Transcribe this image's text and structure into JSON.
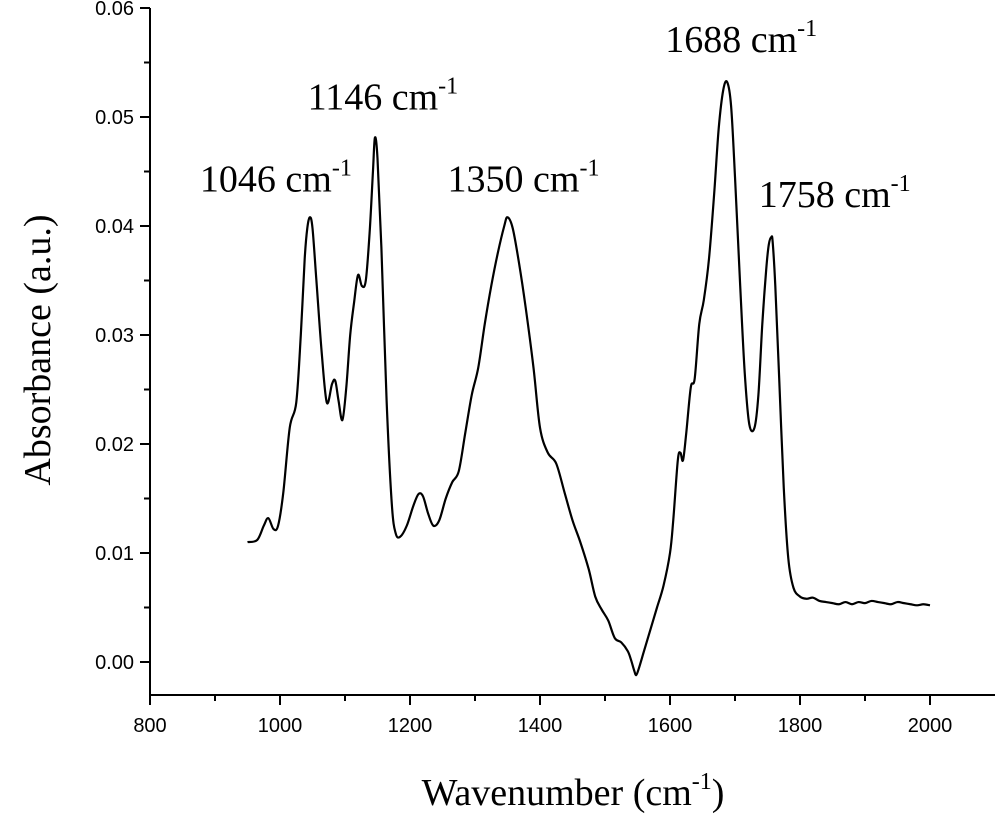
{
  "chart_data": {
    "type": "line",
    "title": "",
    "xlabel": "Wavenumber (cm",
    "xlabel_sup": "-1",
    "xlabel_suffix": ")",
    "ylabel": "Absorbance (a.u.)",
    "xlim": [
      800,
      2000
    ],
    "ylim": [
      -0.003,
      0.06
    ],
    "x_ticks": [
      800,
      1000,
      1200,
      1400,
      1600,
      1800,
      2000
    ],
    "x_tick_labels": [
      "800",
      "1000",
      "1200",
      "1400",
      "1600",
      "1800",
      "2000"
    ],
    "y_ticks": [
      0.0,
      0.01,
      0.02,
      0.03,
      0.04,
      0.05,
      0.06
    ],
    "y_tick_labels": [
      "0.00",
      "0.01",
      "0.02",
      "0.03",
      "0.04",
      "0.05",
      "0.06"
    ],
    "grid": false,
    "series": [
      {
        "color": "#000000",
        "x": [
          950,
          965,
          975,
          982,
          990,
          997,
          1005,
          1015,
          1025,
          1032,
          1038,
          1042,
          1046,
          1050,
          1056,
          1064,
          1072,
          1080,
          1085,
          1090,
          1096,
          1102,
          1108,
          1114,
          1120,
          1126,
          1132,
          1138,
          1143,
          1146,
          1150,
          1156,
          1164,
          1172,
          1178,
          1185,
          1195,
          1205,
          1213,
          1220,
          1228,
          1236,
          1245,
          1255,
          1265,
          1275,
          1285,
          1295,
          1305,
          1315,
          1325,
          1335,
          1345,
          1350,
          1358,
          1368,
          1378,
          1390,
          1400,
          1412,
          1425,
          1438,
          1450,
          1462,
          1475,
          1485,
          1495,
          1505,
          1515,
          1525,
          1535,
          1540,
          1545,
          1548,
          1552,
          1560,
          1570,
          1580,
          1590,
          1600,
          1605,
          1612,
          1616,
          1620,
          1625,
          1632,
          1638,
          1645,
          1652,
          1660,
          1668,
          1675,
          1682,
          1688,
          1694,
          1700,
          1708,
          1715,
          1722,
          1730,
          1736,
          1742,
          1748,
          1752,
          1756,
          1758,
          1762,
          1768,
          1775,
          1782,
          1790,
          1800,
          1810,
          1820,
          1830,
          1840,
          1850,
          1860,
          1870,
          1880,
          1890,
          1900,
          1910,
          1920,
          1930,
          1940,
          1950,
          1960,
          1970,
          1980,
          1990,
          2000
        ],
        "y": [
          0.011,
          0.0112,
          0.0125,
          0.0132,
          0.0122,
          0.0125,
          0.0155,
          0.0215,
          0.0238,
          0.03,
          0.037,
          0.0398,
          0.0408,
          0.0398,
          0.035,
          0.0285,
          0.0238,
          0.0255,
          0.0258,
          0.024,
          0.0222,
          0.0252,
          0.03,
          0.033,
          0.0355,
          0.0345,
          0.035,
          0.0395,
          0.045,
          0.0481,
          0.0462,
          0.038,
          0.024,
          0.0145,
          0.0118,
          0.0115,
          0.0125,
          0.0143,
          0.0154,
          0.0152,
          0.0136,
          0.0125,
          0.013,
          0.015,
          0.0165,
          0.0175,
          0.021,
          0.0245,
          0.027,
          0.031,
          0.0345,
          0.0375,
          0.04,
          0.0408,
          0.0398,
          0.0365,
          0.0325,
          0.027,
          0.0215,
          0.0192,
          0.0182,
          0.0155,
          0.013,
          0.011,
          0.0085,
          0.006,
          0.0048,
          0.0038,
          0.0022,
          0.0018,
          0.001,
          0.0002,
          -0.0008,
          -0.0012,
          -0.0006,
          0.001,
          0.003,
          0.005,
          0.007,
          0.01,
          0.013,
          0.0185,
          0.0192,
          0.0185,
          0.021,
          0.0252,
          0.026,
          0.031,
          0.0332,
          0.037,
          0.043,
          0.049,
          0.0525,
          0.0532,
          0.051,
          0.0445,
          0.0345,
          0.0265,
          0.0218,
          0.0215,
          0.0245,
          0.031,
          0.036,
          0.0383,
          0.039,
          0.0385,
          0.0345,
          0.026,
          0.016,
          0.0095,
          0.0068,
          0.006,
          0.0058,
          0.0059,
          0.0056,
          0.0055,
          0.0054,
          0.0053,
          0.0055,
          0.0053,
          0.0055,
          0.0054,
          0.0056,
          0.0055,
          0.0054,
          0.0053,
          0.0055,
          0.0054,
          0.0053,
          0.0052,
          0.0053,
          0.0052
        ]
      }
    ],
    "annotations": [
      {
        "x": 1046,
        "y": 0.0408,
        "label": "1046 cm",
        "sup": "-1"
      },
      {
        "x": 1146,
        "y": 0.0481,
        "label": "1146 cm",
        "sup": "-1"
      },
      {
        "x": 1350,
        "y": 0.0408,
        "label": "1350 cm",
        "sup": "-1"
      },
      {
        "x": 1688,
        "y": 0.0532,
        "label": "1688 cm",
        "sup": "-1"
      },
      {
        "x": 1758,
        "y": 0.039,
        "label": "1758 cm",
        "sup": "-1"
      }
    ]
  }
}
